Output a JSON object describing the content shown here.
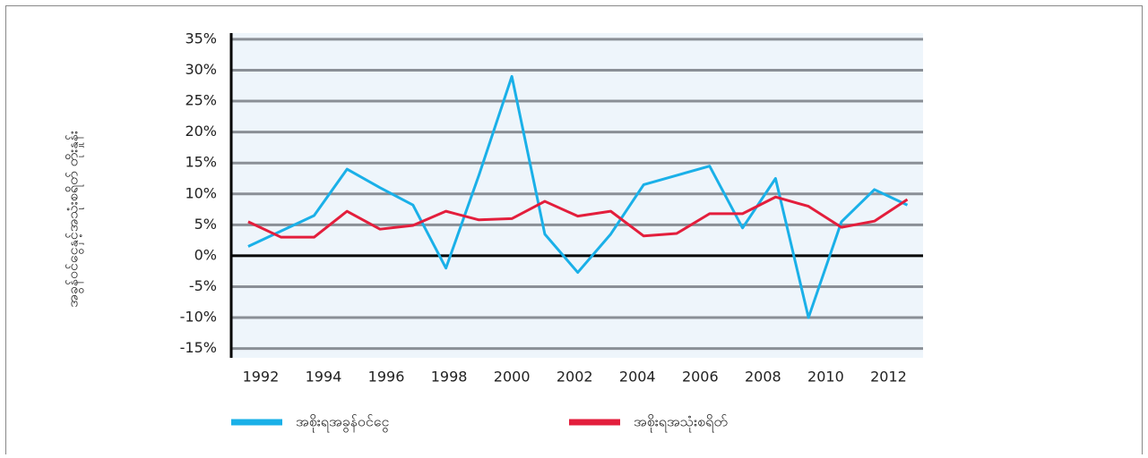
{
  "chart_data": {
    "type": "line",
    "y_label": "အခွန်ဝင်ငွေနှင့်အသုံးစရိတ် တိုးနှုန်း",
    "x": [
      1991.6,
      1992.65,
      1993.7,
      1994.75,
      1995.8,
      1996.85,
      1997.9,
      1998.95,
      2000.0,
      2001.05,
      2002.1,
      2003.15,
      2004.2,
      2005.25,
      2006.3,
      2007.35,
      2008.4,
      2009.45,
      2010.5,
      2011.55,
      2012.6
    ],
    "series": [
      {
        "name": "အစိုးရအခွန်ဝင်ငွေ",
        "color": "#1ab0e8",
        "values": [
          1.5,
          4,
          6.5,
          14,
          11,
          8.2,
          -2,
          13,
          29,
          3.5,
          -2.7,
          3.5,
          11.5,
          13,
          14.5,
          4.5,
          12.5,
          -10,
          5.5,
          10.7,
          8.2
        ]
      },
      {
        "name": "အစိုးရအသုံးစရိတ်",
        "color": "#e31e3c",
        "values": [
          5.5,
          3,
          3,
          7.2,
          4.3,
          4.9,
          7.2,
          5.8,
          6,
          8.8,
          6.4,
          7.2,
          3.2,
          3.6,
          6.8,
          6.8,
          9.5,
          8,
          4.6,
          5.6,
          9.1
        ]
      }
    ],
    "xlim": [
      1991.06,
      2013.1
    ],
    "xticks": [
      1992,
      1994,
      1996,
      1998,
      2000,
      2002,
      2004,
      2006,
      2008,
      2010,
      2012
    ],
    "ylim": [
      -16.5,
      36
    ],
    "yticks": [
      {
        "value": -15,
        "label": "-15%"
      },
      {
        "value": -10,
        "label": "-10%"
      },
      {
        "value": -5,
        "label": "-5%"
      },
      {
        "value": 0,
        "label": "0%"
      },
      {
        "value": 5,
        "label": "5%"
      },
      {
        "value": 10,
        "label": "10%"
      },
      {
        "value": 15,
        "label": "15%"
      },
      {
        "value": 20,
        "label": "20%"
      },
      {
        "value": 25,
        "label": "25%"
      },
      {
        "value": 30,
        "label": "30%"
      },
      {
        "value": 35,
        "label": "35%"
      }
    ],
    "grid": true,
    "legend": "bottom"
  }
}
